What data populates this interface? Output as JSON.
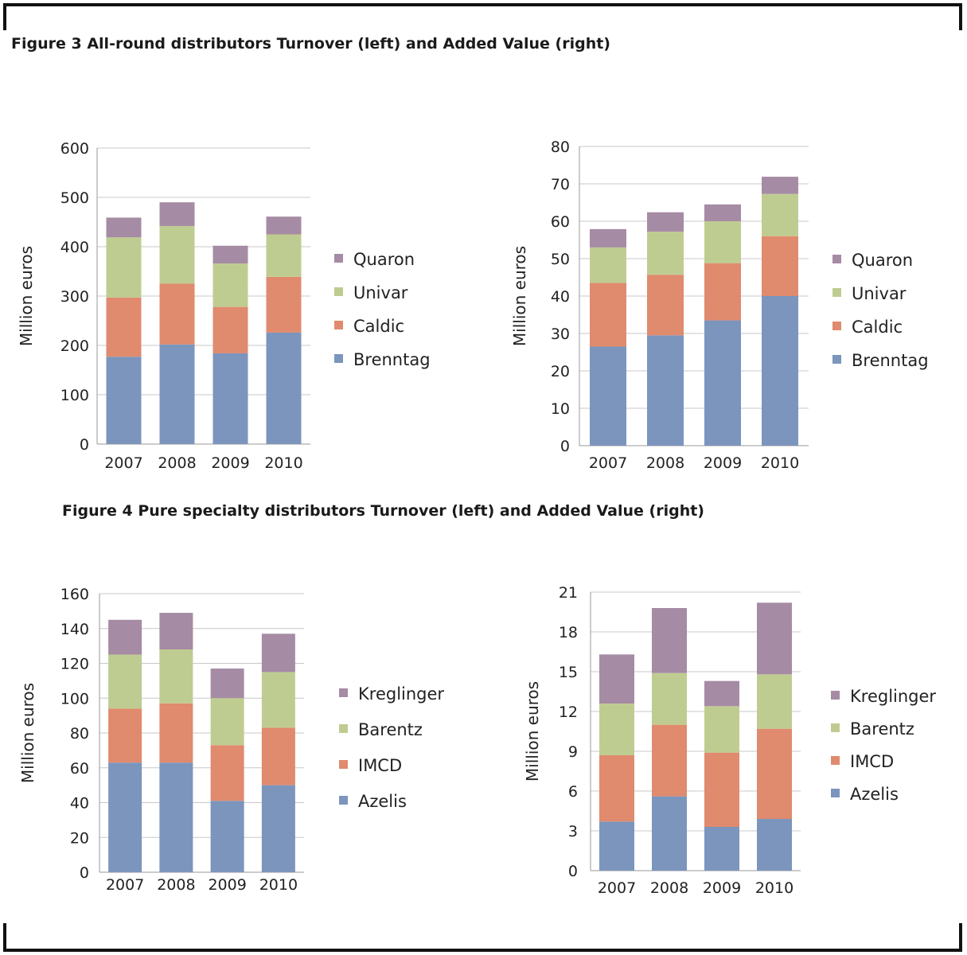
{
  "figure3": {
    "title_prefix": "Figure 3",
    "title_text": "All-round distributors Turnover (left) and Added Value (right)"
  },
  "figure4": {
    "title_prefix": "Figure 4",
    "title_text": "Pure specialty distributors Turnover (left) and Added Value (right)"
  },
  "colors": {
    "Brenntag": "#7b95bd",
    "Caldic": "#e08a6e",
    "Univar": "#bfcc91",
    "Quaron": "#a68ba4",
    "Azelis": "#7b95bd",
    "IMCD": "#e08a6e",
    "Barentz": "#bfcc91",
    "Kreglinger": "#a68ba4"
  },
  "chart_data": [
    {
      "type": "bar",
      "stacked": true,
      "categories": [
        "2007",
        "2008",
        "2009",
        "2010"
      ],
      "ylabel": "Million euros",
      "ylim": [
        0,
        600
      ],
      "yticks": [
        "0",
        "100",
        "200",
        "300",
        "400",
        "500",
        "600"
      ],
      "grid": true,
      "legend_position": "right",
      "series": [
        {
          "name": "Brenntag",
          "values": [
            177,
            202,
            184,
            226
          ]
        },
        {
          "name": "Caldic",
          "values": [
            120,
            123,
            94,
            113
          ]
        },
        {
          "name": "Univar",
          "values": [
            122,
            117,
            88,
            86
          ]
        },
        {
          "name": "Quaron",
          "values": [
            40,
            48,
            36,
            36
          ]
        }
      ]
    },
    {
      "type": "bar",
      "stacked": true,
      "categories": [
        "2007",
        "2008",
        "2009",
        "2010"
      ],
      "ylabel": "Million euros",
      "ylim": [
        0,
        80
      ],
      "yticks": [
        "0",
        "10",
        "20",
        "30",
        "40",
        "50",
        "60",
        "70",
        "80"
      ],
      "grid": true,
      "legend_position": "right",
      "series": [
        {
          "name": "Brenntag",
          "values": [
            26.5,
            29.5,
            33.5,
            40
          ]
        },
        {
          "name": "Caldic",
          "values": [
            17,
            16.2,
            15.3,
            16
          ]
        },
        {
          "name": "Univar",
          "values": [
            9.5,
            11.5,
            11.2,
            11.3
          ]
        },
        {
          "name": "Quaron",
          "values": [
            4.9,
            5.2,
            4.5,
            4.6
          ]
        }
      ]
    },
    {
      "type": "bar",
      "stacked": true,
      "categories": [
        "2007",
        "2008",
        "2009",
        "2010"
      ],
      "ylabel": "Million euros",
      "ylim": [
        0,
        160
      ],
      "yticks": [
        "0",
        "20",
        "40",
        "60",
        "80",
        "100",
        "120",
        "140",
        "160"
      ],
      "grid": true,
      "legend_position": "right",
      "series": [
        {
          "name": "Azelis",
          "values": [
            63,
            63,
            41,
            50
          ]
        },
        {
          "name": "IMCD",
          "values": [
            31,
            34,
            32,
            33
          ]
        },
        {
          "name": "Barentz",
          "values": [
            31,
            31,
            27,
            32
          ]
        },
        {
          "name": "Kreglinger",
          "values": [
            20,
            21,
            17,
            22
          ]
        }
      ]
    },
    {
      "type": "bar",
      "stacked": true,
      "categories": [
        "2007",
        "2008",
        "2009",
        "2010"
      ],
      "ylabel": "Million euros",
      "ylim": [
        0,
        21
      ],
      "yticks": [
        "0",
        "3",
        "6",
        "9",
        "12",
        "15",
        "18",
        "21"
      ],
      "grid": true,
      "legend_position": "right",
      "series": [
        {
          "name": "Azelis",
          "values": [
            3.7,
            5.6,
            3.3,
            3.9
          ]
        },
        {
          "name": "IMCD",
          "values": [
            5.0,
            5.4,
            5.6,
            6.8
          ]
        },
        {
          "name": "Barentz",
          "values": [
            3.9,
            3.9,
            3.5,
            4.1
          ]
        },
        {
          "name": "Kreglinger",
          "values": [
            3.7,
            4.9,
            1.9,
            5.4
          ]
        }
      ]
    }
  ]
}
